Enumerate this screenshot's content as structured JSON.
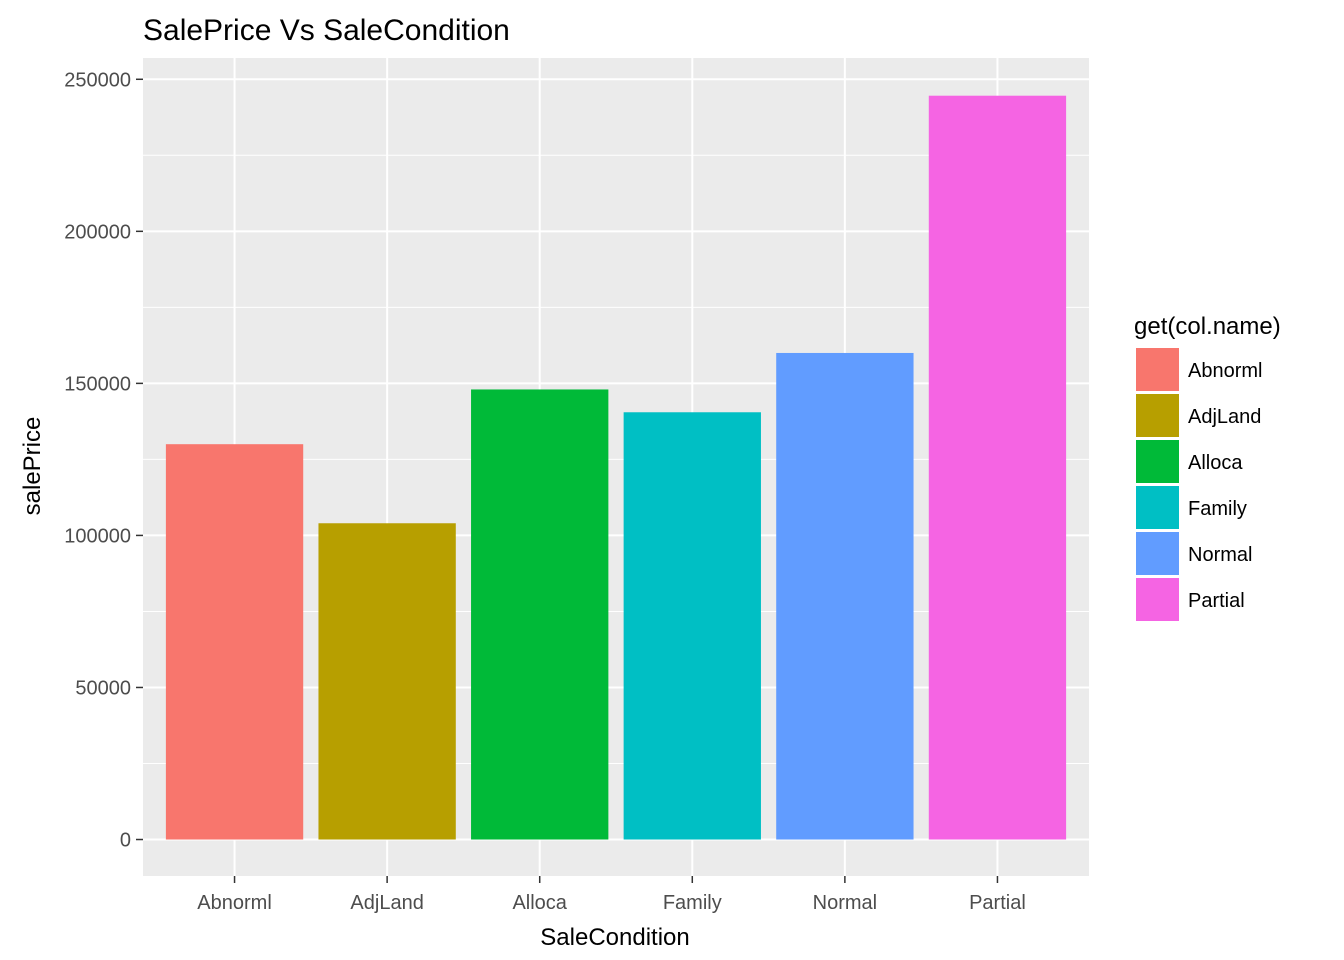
{
  "chart_data": {
    "type": "bar",
    "title": "SalePrice Vs SaleCondition",
    "xlabel": "SaleCondition",
    "ylabel": "salePrice",
    "categories": [
      "Abnorml",
      "AdjLand",
      "Alloca",
      "Family",
      "Normal",
      "Partial"
    ],
    "values": [
      130000,
      104000,
      148000,
      140500,
      160000,
      244600
    ],
    "colors": [
      "#F8766D",
      "#B79F00",
      "#00BA38",
      "#00BFC4",
      "#619CFF",
      "#F564E3"
    ],
    "ylim": [
      -12000,
      257000
    ],
    "y_ticks": [
      0,
      50000,
      100000,
      150000,
      200000,
      250000
    ],
    "y_tick_labels": [
      "0",
      "50000",
      "100000",
      "150000",
      "200000",
      "250000"
    ],
    "grid": true,
    "legend": {
      "title": "get(col.name)",
      "placement": "right",
      "entries": [
        "Abnorml",
        "AdjLand",
        "Alloca",
        "Family",
        "Normal",
        "Partial"
      ]
    }
  }
}
